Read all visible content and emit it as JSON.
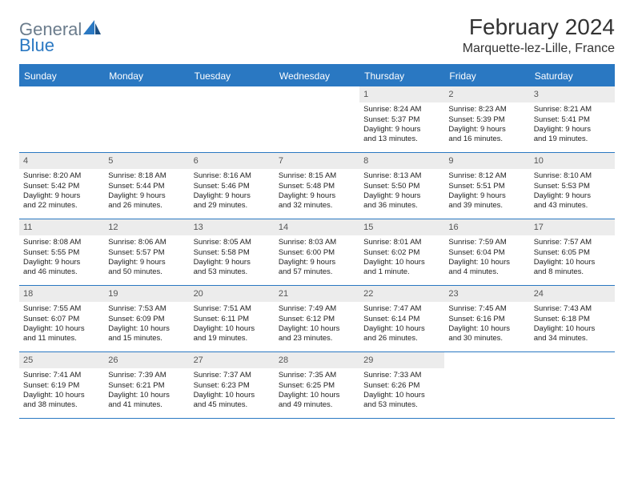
{
  "logo": {
    "text1": "General",
    "text2": "Blue"
  },
  "title": "February 2024",
  "subtitle": "Marquette-lez-Lille, France",
  "header_bg": "#2a78c2",
  "daynum_bg": "#ececec",
  "week_border": "#2a78c2",
  "days": [
    "Sunday",
    "Monday",
    "Tuesday",
    "Wednesday",
    "Thursday",
    "Friday",
    "Saturday"
  ],
  "weeks": [
    [
      {
        "n": "",
        "sr": "",
        "ss": "",
        "d1": "",
        "d2": ""
      },
      {
        "n": "",
        "sr": "",
        "ss": "",
        "d1": "",
        "d2": ""
      },
      {
        "n": "",
        "sr": "",
        "ss": "",
        "d1": "",
        "d2": ""
      },
      {
        "n": "",
        "sr": "",
        "ss": "",
        "d1": "",
        "d2": ""
      },
      {
        "n": "1",
        "sr": "Sunrise: 8:24 AM",
        "ss": "Sunset: 5:37 PM",
        "d1": "Daylight: 9 hours",
        "d2": "and 13 minutes."
      },
      {
        "n": "2",
        "sr": "Sunrise: 8:23 AM",
        "ss": "Sunset: 5:39 PM",
        "d1": "Daylight: 9 hours",
        "d2": "and 16 minutes."
      },
      {
        "n": "3",
        "sr": "Sunrise: 8:21 AM",
        "ss": "Sunset: 5:41 PM",
        "d1": "Daylight: 9 hours",
        "d2": "and 19 minutes."
      }
    ],
    [
      {
        "n": "4",
        "sr": "Sunrise: 8:20 AM",
        "ss": "Sunset: 5:42 PM",
        "d1": "Daylight: 9 hours",
        "d2": "and 22 minutes."
      },
      {
        "n": "5",
        "sr": "Sunrise: 8:18 AM",
        "ss": "Sunset: 5:44 PM",
        "d1": "Daylight: 9 hours",
        "d2": "and 26 minutes."
      },
      {
        "n": "6",
        "sr": "Sunrise: 8:16 AM",
        "ss": "Sunset: 5:46 PM",
        "d1": "Daylight: 9 hours",
        "d2": "and 29 minutes."
      },
      {
        "n": "7",
        "sr": "Sunrise: 8:15 AM",
        "ss": "Sunset: 5:48 PM",
        "d1": "Daylight: 9 hours",
        "d2": "and 32 minutes."
      },
      {
        "n": "8",
        "sr": "Sunrise: 8:13 AM",
        "ss": "Sunset: 5:50 PM",
        "d1": "Daylight: 9 hours",
        "d2": "and 36 minutes."
      },
      {
        "n": "9",
        "sr": "Sunrise: 8:12 AM",
        "ss": "Sunset: 5:51 PM",
        "d1": "Daylight: 9 hours",
        "d2": "and 39 minutes."
      },
      {
        "n": "10",
        "sr": "Sunrise: 8:10 AM",
        "ss": "Sunset: 5:53 PM",
        "d1": "Daylight: 9 hours",
        "d2": "and 43 minutes."
      }
    ],
    [
      {
        "n": "11",
        "sr": "Sunrise: 8:08 AM",
        "ss": "Sunset: 5:55 PM",
        "d1": "Daylight: 9 hours",
        "d2": "and 46 minutes."
      },
      {
        "n": "12",
        "sr": "Sunrise: 8:06 AM",
        "ss": "Sunset: 5:57 PM",
        "d1": "Daylight: 9 hours",
        "d2": "and 50 minutes."
      },
      {
        "n": "13",
        "sr": "Sunrise: 8:05 AM",
        "ss": "Sunset: 5:58 PM",
        "d1": "Daylight: 9 hours",
        "d2": "and 53 minutes."
      },
      {
        "n": "14",
        "sr": "Sunrise: 8:03 AM",
        "ss": "Sunset: 6:00 PM",
        "d1": "Daylight: 9 hours",
        "d2": "and 57 minutes."
      },
      {
        "n": "15",
        "sr": "Sunrise: 8:01 AM",
        "ss": "Sunset: 6:02 PM",
        "d1": "Daylight: 10 hours",
        "d2": "and 1 minute."
      },
      {
        "n": "16",
        "sr": "Sunrise: 7:59 AM",
        "ss": "Sunset: 6:04 PM",
        "d1": "Daylight: 10 hours",
        "d2": "and 4 minutes."
      },
      {
        "n": "17",
        "sr": "Sunrise: 7:57 AM",
        "ss": "Sunset: 6:05 PM",
        "d1": "Daylight: 10 hours",
        "d2": "and 8 minutes."
      }
    ],
    [
      {
        "n": "18",
        "sr": "Sunrise: 7:55 AM",
        "ss": "Sunset: 6:07 PM",
        "d1": "Daylight: 10 hours",
        "d2": "and 11 minutes."
      },
      {
        "n": "19",
        "sr": "Sunrise: 7:53 AM",
        "ss": "Sunset: 6:09 PM",
        "d1": "Daylight: 10 hours",
        "d2": "and 15 minutes."
      },
      {
        "n": "20",
        "sr": "Sunrise: 7:51 AM",
        "ss": "Sunset: 6:11 PM",
        "d1": "Daylight: 10 hours",
        "d2": "and 19 minutes."
      },
      {
        "n": "21",
        "sr": "Sunrise: 7:49 AM",
        "ss": "Sunset: 6:12 PM",
        "d1": "Daylight: 10 hours",
        "d2": "and 23 minutes."
      },
      {
        "n": "22",
        "sr": "Sunrise: 7:47 AM",
        "ss": "Sunset: 6:14 PM",
        "d1": "Daylight: 10 hours",
        "d2": "and 26 minutes."
      },
      {
        "n": "23",
        "sr": "Sunrise: 7:45 AM",
        "ss": "Sunset: 6:16 PM",
        "d1": "Daylight: 10 hours",
        "d2": "and 30 minutes."
      },
      {
        "n": "24",
        "sr": "Sunrise: 7:43 AM",
        "ss": "Sunset: 6:18 PM",
        "d1": "Daylight: 10 hours",
        "d2": "and 34 minutes."
      }
    ],
    [
      {
        "n": "25",
        "sr": "Sunrise: 7:41 AM",
        "ss": "Sunset: 6:19 PM",
        "d1": "Daylight: 10 hours",
        "d2": "and 38 minutes."
      },
      {
        "n": "26",
        "sr": "Sunrise: 7:39 AM",
        "ss": "Sunset: 6:21 PM",
        "d1": "Daylight: 10 hours",
        "d2": "and 41 minutes."
      },
      {
        "n": "27",
        "sr": "Sunrise: 7:37 AM",
        "ss": "Sunset: 6:23 PM",
        "d1": "Daylight: 10 hours",
        "d2": "and 45 minutes."
      },
      {
        "n": "28",
        "sr": "Sunrise: 7:35 AM",
        "ss": "Sunset: 6:25 PM",
        "d1": "Daylight: 10 hours",
        "d2": "and 49 minutes."
      },
      {
        "n": "29",
        "sr": "Sunrise: 7:33 AM",
        "ss": "Sunset: 6:26 PM",
        "d1": "Daylight: 10 hours",
        "d2": "and 53 minutes."
      },
      {
        "n": "",
        "sr": "",
        "ss": "",
        "d1": "",
        "d2": ""
      },
      {
        "n": "",
        "sr": "",
        "ss": "",
        "d1": "",
        "d2": ""
      }
    ]
  ]
}
